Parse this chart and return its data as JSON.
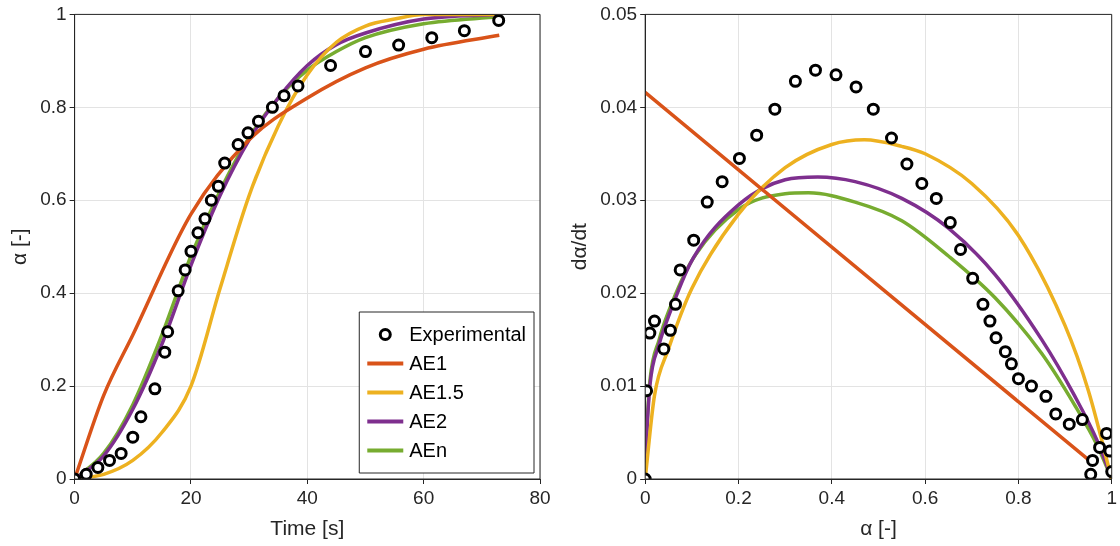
{
  "chart_data": [
    {
      "type": "scatter",
      "xlabel": "Time [s]",
      "ylabel": "α [-]",
      "xlim": [
        0,
        80
      ],
      "xticks": [
        0,
        20,
        40,
        60,
        80
      ],
      "ylim": [
        0,
        1
      ],
      "yticks": [
        0,
        0.2,
        0.4,
        0.6,
        0.8,
        1
      ],
      "grid": true,
      "legend": "bottom right",
      "series": [
        {
          "name": "Experimental",
          "type": "scatter",
          "marker": "circle",
          "color": "#000000",
          "x": [
            0,
            2,
            4,
            6,
            8,
            10,
            11.4,
            13.8,
            15.5,
            16,
            17.8,
            19,
            20,
            21.2,
            22.4,
            23.5,
            24.7,
            25.8,
            28.1,
            29.8,
            31.6,
            34,
            36,
            38.4,
            44,
            50,
            55.7,
            61.4,
            67,
            72.9
          ],
          "values": [
            0,
            0.01,
            0.025,
            0.04,
            0.055,
            0.09,
            0.134,
            0.194,
            0.273,
            0.317,
            0.405,
            0.45,
            0.49,
            0.53,
            0.56,
            0.6,
            0.63,
            0.68,
            0.72,
            0.745,
            0.77,
            0.8,
            0.825,
            0.846,
            0.89,
            0.92,
            0.934,
            0.95,
            0.965,
            0.987
          ]
        },
        {
          "name": "AE1",
          "type": "line",
          "marker": "none",
          "color": "#d95319",
          "x": [
            0,
            5,
            10,
            20,
            30,
            40,
            50,
            60,
            73
          ],
          "values": [
            0,
            0.18,
            0.31,
            0.57,
            0.73,
            0.82,
            0.885,
            0.925,
            0.955
          ]
        },
        {
          "name": "AE1.5",
          "type": "line",
          "marker": "none",
          "color": "#edb120",
          "x": [
            0,
            5,
            10,
            15,
            20,
            25,
            30,
            35,
            40,
            45,
            50,
            55,
            60,
            73
          ],
          "values": [
            0,
            0.01,
            0.04,
            0.1,
            0.2,
            0.41,
            0.61,
            0.76,
            0.87,
            0.94,
            0.975,
            0.99,
            1,
            1
          ]
        },
        {
          "name": "AE2",
          "type": "line",
          "marker": "none",
          "color": "#7e2f8e",
          "x": [
            0,
            5,
            10,
            15,
            20,
            25,
            30,
            35,
            40,
            45,
            50,
            60,
            73
          ],
          "values": [
            0,
            0.05,
            0.15,
            0.29,
            0.46,
            0.61,
            0.73,
            0.82,
            0.89,
            0.935,
            0.96,
            0.99,
            1
          ]
        },
        {
          "name": "AEn",
          "type": "line",
          "marker": "none",
          "color": "#77ac30",
          "x": [
            0,
            5,
            10,
            15,
            20,
            25,
            30,
            35,
            40,
            45,
            50,
            60,
            73
          ],
          "values": [
            0,
            0.055,
            0.16,
            0.31,
            0.48,
            0.62,
            0.735,
            0.82,
            0.88,
            0.92,
            0.95,
            0.98,
            0.995
          ]
        }
      ]
    },
    {
      "type": "scatter",
      "xlabel": "α [-]",
      "ylabel": "dα/dt",
      "xlim": [
        0,
        1
      ],
      "xticks": [
        0,
        0.2,
        0.4,
        0.6,
        0.8,
        1
      ],
      "ylim": [
        0,
        0.05
      ],
      "yticks": [
        0,
        0.01,
        0.02,
        0.03,
        0.04,
        0.05
      ],
      "grid": true,
      "legend": false,
      "series": [
        {
          "type": "scatter",
          "marker": "circle",
          "color": "#000000",
          "x": [
            0,
            0.003,
            0.01,
            0.02,
            0.04,
            0.054,
            0.065,
            0.075,
            0.104,
            0.133,
            0.165,
            0.202,
            0.239,
            0.278,
            0.322,
            0.365,
            0.409,
            0.452,
            0.489,
            0.528,
            0.561,
            0.593,
            0.624,
            0.654,
            0.676,
            0.702,
            0.724,
            0.739,
            0.752,
            0.772,
            0.785,
            0.8,
            0.828,
            0.859,
            0.88,
            0.909,
            0.937,
            0.955,
            0.959,
            0.974,
            0.989,
            0.996,
            1
          ],
          "values": [
            0,
            0.0095,
            0.0157,
            0.017,
            0.014,
            0.016,
            0.0188,
            0.0225,
            0.0257,
            0.0298,
            0.032,
            0.0345,
            0.037,
            0.0398,
            0.0428,
            0.044,
            0.0435,
            0.0422,
            0.0398,
            0.0367,
            0.0339,
            0.0318,
            0.0302,
            0.0276,
            0.0247,
            0.0216,
            0.0188,
            0.017,
            0.0152,
            0.0137,
            0.0124,
            0.0108,
            0.01,
            0.0089,
            0.007,
            0.0059,
            0.0064,
            0.0005,
            0.002,
            0.0034,
            0.0049,
            0.003,
            0.0008
          ]
        },
        {
          "type": "line",
          "marker": "none",
          "color": "#d95319",
          "x": [
            0,
            0.959
          ],
          "values": [
            0.0416,
            0.0017
          ]
        },
        {
          "type": "line",
          "marker": "none",
          "color": "#edb120",
          "x": [
            0,
            0.02,
            0.05,
            0.1,
            0.2,
            0.3,
            0.4,
            0.47,
            0.55,
            0.6,
            0.7,
            0.8,
            0.9,
            0.95,
            1
          ],
          "values": [
            0,
            0.009,
            0.014,
            0.0205,
            0.0285,
            0.0335,
            0.036,
            0.0365,
            0.0358,
            0.035,
            0.0318,
            0.0262,
            0.0165,
            0.0095,
            0
          ]
        },
        {
          "type": "line",
          "marker": "none",
          "color": "#7e2f8e",
          "x": [
            0,
            0.01,
            0.03,
            0.05,
            0.1,
            0.2,
            0.3,
            0.37,
            0.45,
            0.55,
            0.65,
            0.75,
            0.85,
            0.92,
            0.97,
            1
          ],
          "values": [
            0.002,
            0.01,
            0.0145,
            0.0175,
            0.0235,
            0.0295,
            0.0322,
            0.0325,
            0.032,
            0.0302,
            0.027,
            0.022,
            0.015,
            0.009,
            0.004,
            0
          ]
        },
        {
          "type": "line",
          "marker": "none",
          "color": "#77ac30",
          "x": [
            0,
            0.01,
            0.03,
            0.05,
            0.1,
            0.2,
            0.3,
            0.35,
            0.45,
            0.55,
            0.65,
            0.75,
            0.85,
            0.92,
            0.97,
            1
          ],
          "values": [
            0.0025,
            0.0105,
            0.015,
            0.018,
            0.0235,
            0.029,
            0.0307,
            0.0308,
            0.0298,
            0.0278,
            0.024,
            0.0195,
            0.0135,
            0.008,
            0.0035,
            0
          ]
        }
      ]
    }
  ]
}
